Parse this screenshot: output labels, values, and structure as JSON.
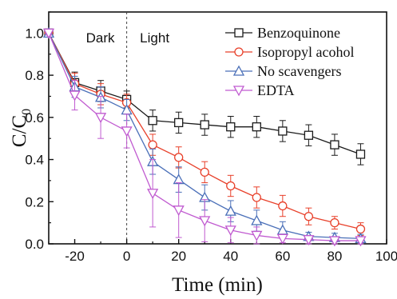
{
  "chart_data": {
    "type": "line",
    "xlabel": "Time (min)",
    "ylabel_main": "C/C",
    "ylabel_sub": "0",
    "xlim": [
      -30,
      100
    ],
    "ylim": [
      0.0,
      1.1
    ],
    "xticks": [
      -20,
      0,
      20,
      40,
      60,
      80,
      100
    ],
    "xtick_labels": [
      "-20",
      "0",
      "20",
      "40",
      "60",
      "80",
      "100"
    ],
    "yticks": [
      0.0,
      0.2,
      0.4,
      0.6,
      0.8,
      1.0
    ],
    "ytick_labels": [
      "0.0",
      "0.2",
      "0.4",
      "0.6",
      "0.8",
      "1.0"
    ],
    "divider_x": 0,
    "region_labels": [
      "Dark",
      "Light"
    ],
    "legend_position": "top-right",
    "x": [
      -30,
      -20,
      -10,
      0,
      10,
      20,
      30,
      40,
      50,
      60,
      70,
      80,
      90
    ],
    "series": [
      {
        "name": "Benzoquinone",
        "marker": "square",
        "color": "#1a1a1a",
        "values": [
          1.0,
          0.765,
          0.725,
          0.685,
          0.585,
          0.575,
          0.565,
          0.555,
          0.555,
          0.535,
          0.515,
          0.47,
          0.425
        ],
        "errors": [
          0.01,
          0.05,
          0.05,
          0.04,
          0.05,
          0.05,
          0.05,
          0.05,
          0.05,
          0.05,
          0.05,
          0.05,
          0.05
        ]
      },
      {
        "name": "Isopropyl acohol",
        "marker": "circle",
        "color": "#e8402a",
        "values": [
          1.0,
          0.76,
          0.71,
          0.67,
          0.47,
          0.41,
          0.34,
          0.275,
          0.22,
          0.18,
          0.13,
          0.1,
          0.07
        ],
        "errors": [
          0.01,
          0.05,
          0.05,
          0.04,
          0.05,
          0.05,
          0.05,
          0.05,
          0.05,
          0.05,
          0.04,
          0.03,
          0.03
        ]
      },
      {
        "name": "No scavengers",
        "marker": "triangle-up",
        "color": "#4a6fb8",
        "values": [
          1.0,
          0.745,
          0.695,
          0.635,
          0.39,
          0.305,
          0.22,
          0.155,
          0.11,
          0.065,
          0.035,
          0.03,
          0.025
        ],
        "errors": [
          0.01,
          0.05,
          0.05,
          0.05,
          0.06,
          0.06,
          0.06,
          0.05,
          0.05,
          0.04,
          0.02,
          0.02,
          0.02
        ]
      },
      {
        "name": "EDTA",
        "marker": "triangle-down",
        "color": "#c05ad0",
        "values": [
          1.0,
          0.705,
          0.6,
          0.535,
          0.24,
          0.16,
          0.11,
          0.065,
          0.04,
          0.025,
          0.02,
          0.015,
          0.015
        ],
        "errors": [
          0.01,
          0.07,
          0.1,
          0.08,
          0.16,
          0.13,
          0.1,
          0.06,
          0.04,
          0.02,
          0.02,
          0.015,
          0.015
        ]
      }
    ]
  }
}
